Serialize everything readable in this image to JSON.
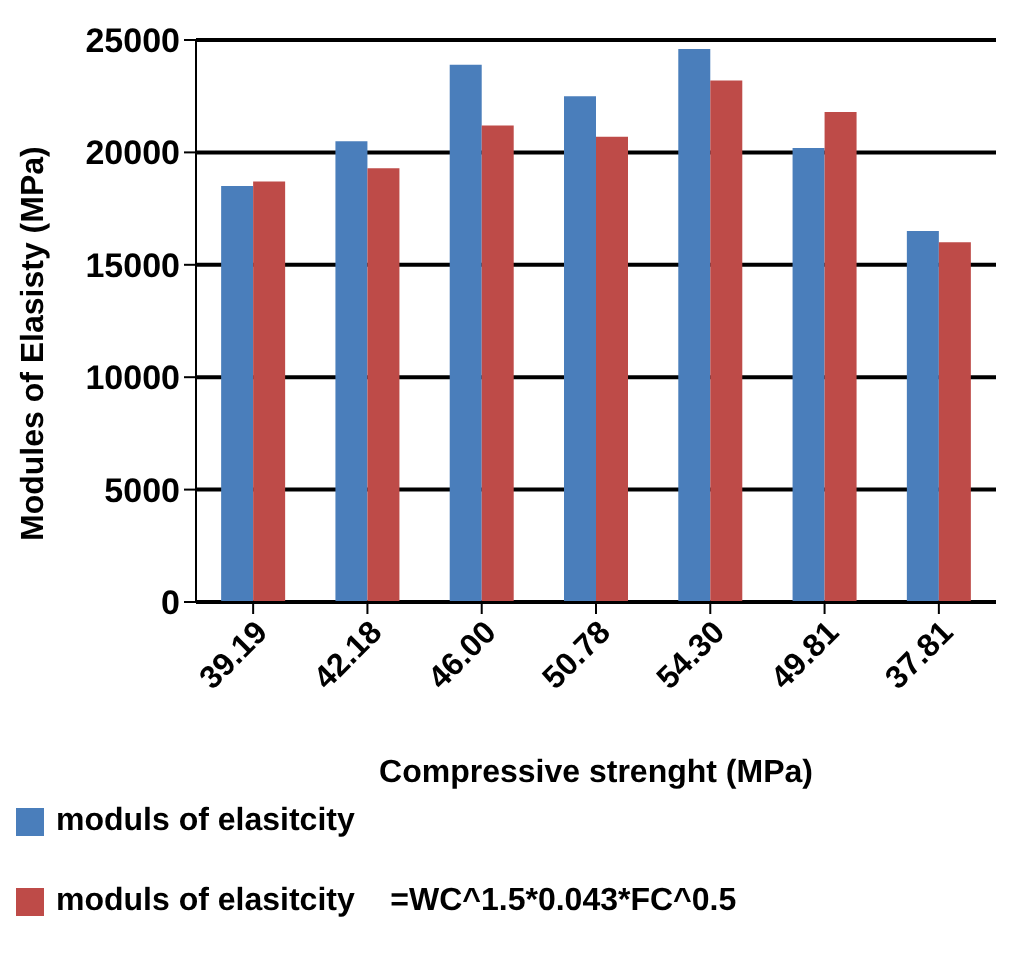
{
  "chart_data": {
    "type": "bar",
    "xlabel": "Compressive  strenght (MPa)",
    "ylabel": "Modules of Elasisty (MPa)",
    "categories": [
      "39.19",
      "42.18",
      "46.00",
      "50.78",
      "54.30",
      "49.81",
      "37.81"
    ],
    "series": [
      {
        "name": "moduls of elasitcity",
        "color": "#4a7ebb",
        "values": [
          18500,
          20500,
          23900,
          22500,
          24600,
          20200,
          16500
        ]
      },
      {
        "name": "moduls of elasitcity    =WC^1.5*0.043*FC^0.5",
        "color": "#be4b48",
        "values": [
          18700,
          19300,
          21200,
          20700,
          23200,
          21800,
          16000
        ]
      }
    ],
    "ylim": [
      0,
      25000
    ],
    "yticks": [
      0,
      5000,
      10000,
      15000,
      20000,
      25000
    ],
    "grid": "y",
    "legend": "bottom"
  }
}
